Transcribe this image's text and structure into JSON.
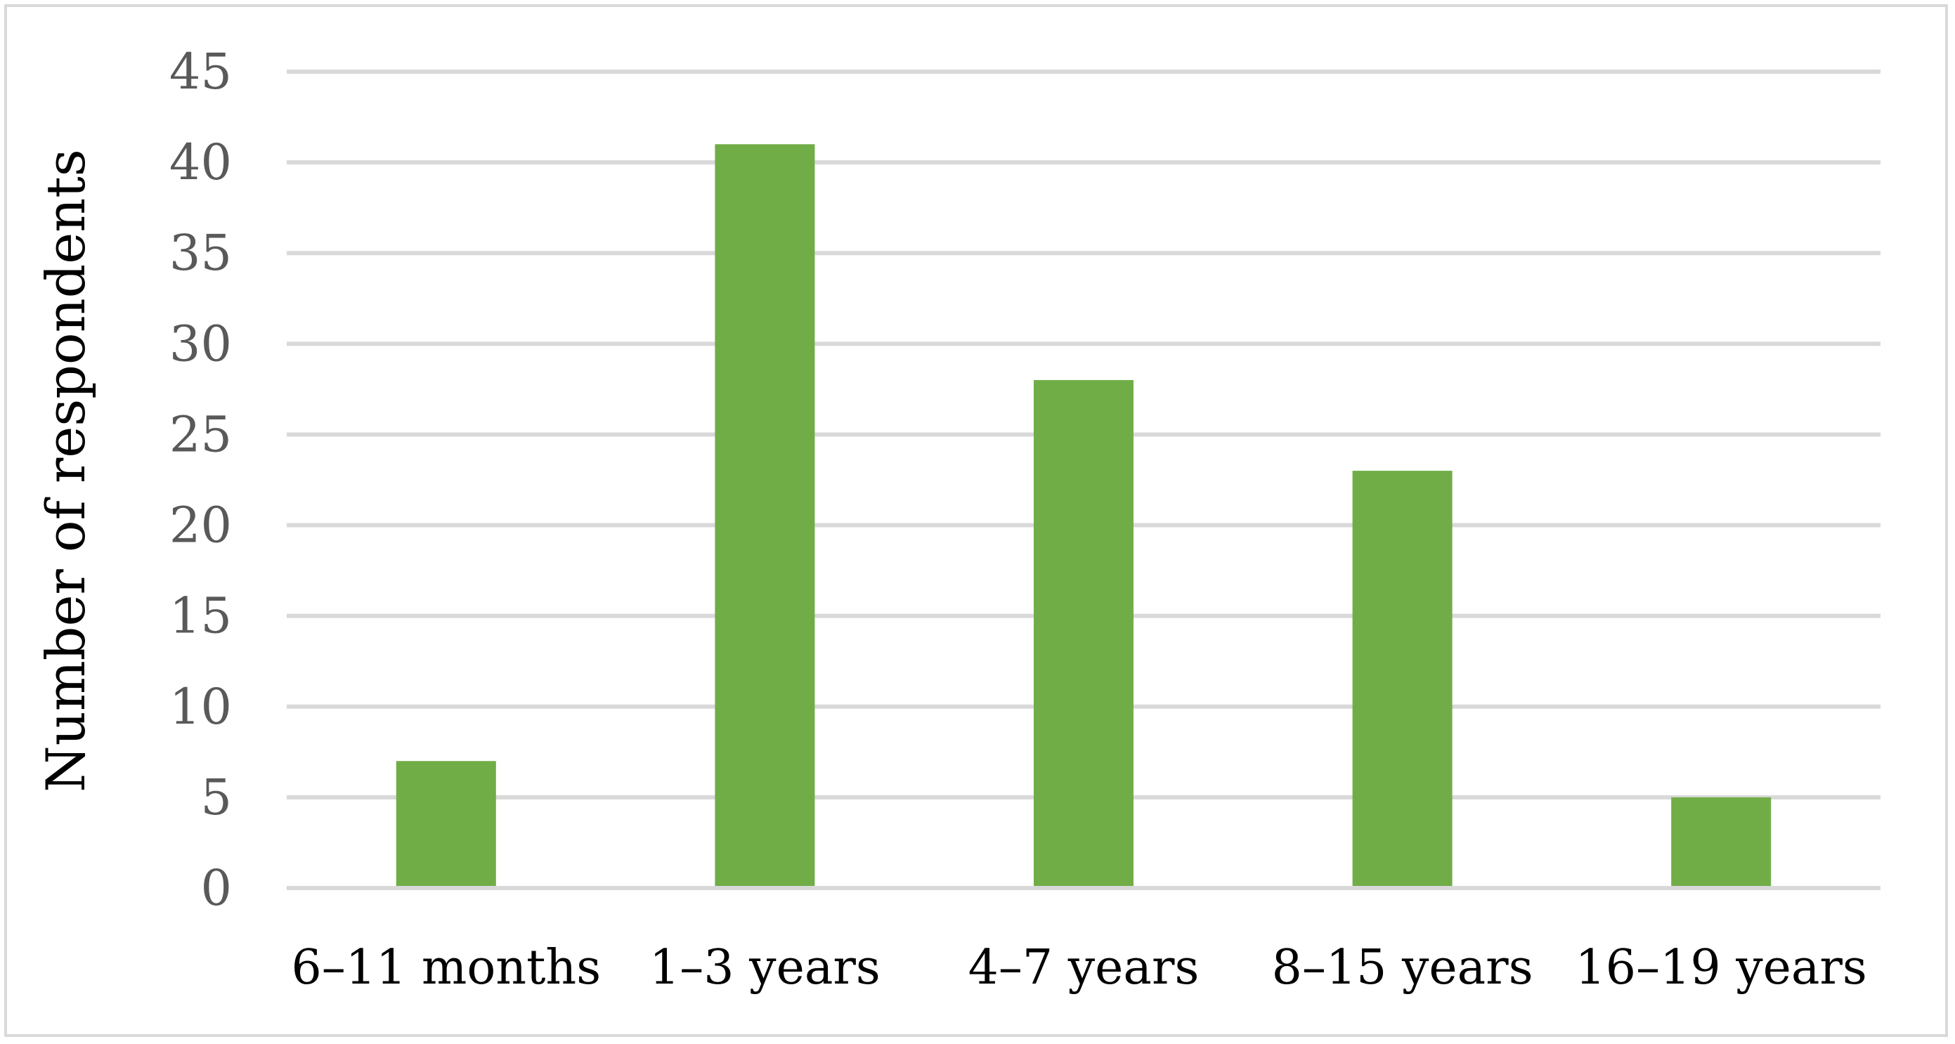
{
  "chart_data": {
    "type": "bar",
    "title": "",
    "xlabel": "",
    "ylabel": "Number of respondents",
    "categories": [
      "6–11 months",
      "1–3 years",
      "4–7 years",
      "8–15 years",
      "16–19 years"
    ],
    "values": [
      7,
      41,
      28,
      23,
      5
    ],
    "ylim": [
      0,
      45
    ],
    "yticks": [
      0,
      5,
      10,
      15,
      20,
      25,
      30,
      35,
      40,
      45
    ],
    "grid": true,
    "legend": "none",
    "bar_color": "#70ad47"
  }
}
